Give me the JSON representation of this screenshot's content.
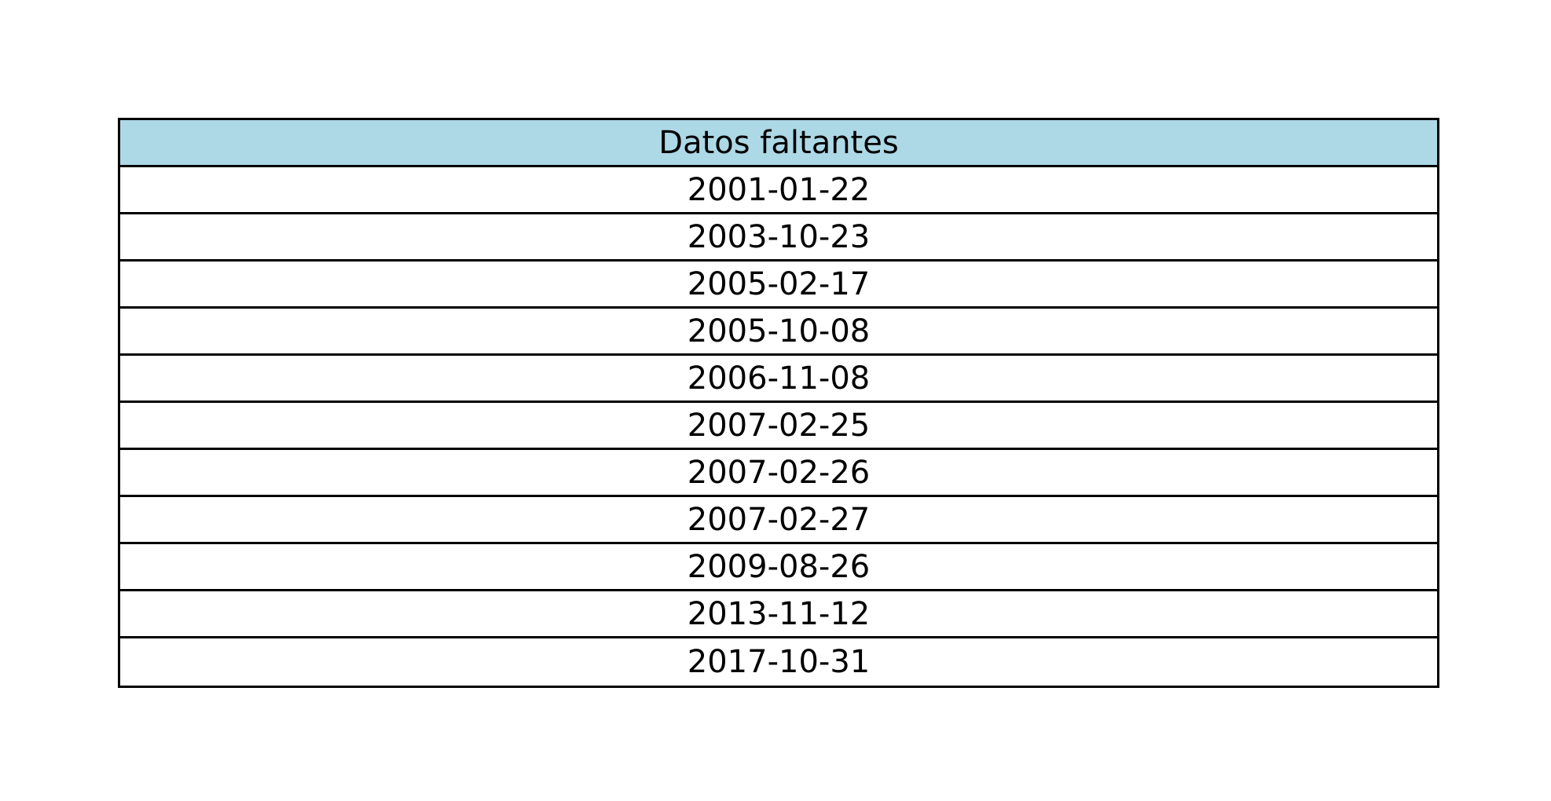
{
  "chart_data": {
    "type": "table",
    "columns": [
      "Datos faltantes"
    ],
    "rows": [
      [
        "2001-01-22"
      ],
      [
        "2003-10-23"
      ],
      [
        "2005-02-17"
      ],
      [
        "2005-10-08"
      ],
      [
        "2006-11-08"
      ],
      [
        "2007-02-25"
      ],
      [
        "2007-02-26"
      ],
      [
        "2007-02-27"
      ],
      [
        "2009-08-26"
      ],
      [
        "2013-11-12"
      ],
      [
        "2017-10-31"
      ]
    ],
    "header_color": "#add8e6",
    "cell_color": "#ffffff",
    "border_color": "#000000"
  }
}
